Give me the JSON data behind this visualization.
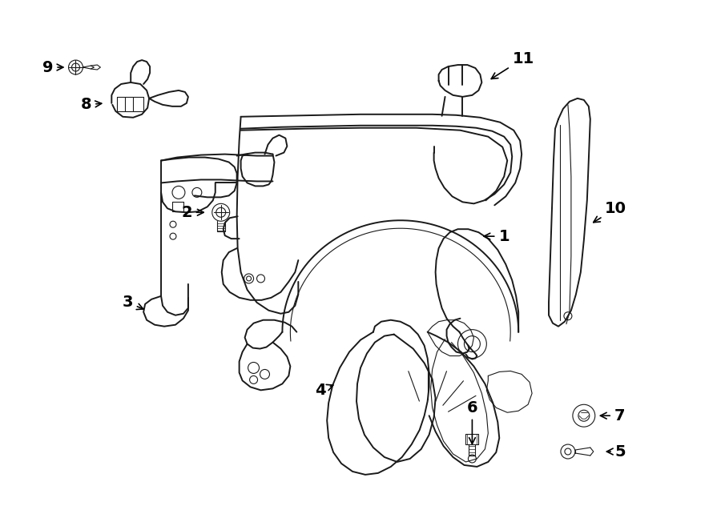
{
  "background_color": "#ffffff",
  "line_color": "#1a1a1a",
  "label_color": "#000000",
  "label_fontsize": 14,
  "label_fontweight": "bold",
  "figsize": [
    9.0,
    6.62
  ],
  "dpi": 100
}
